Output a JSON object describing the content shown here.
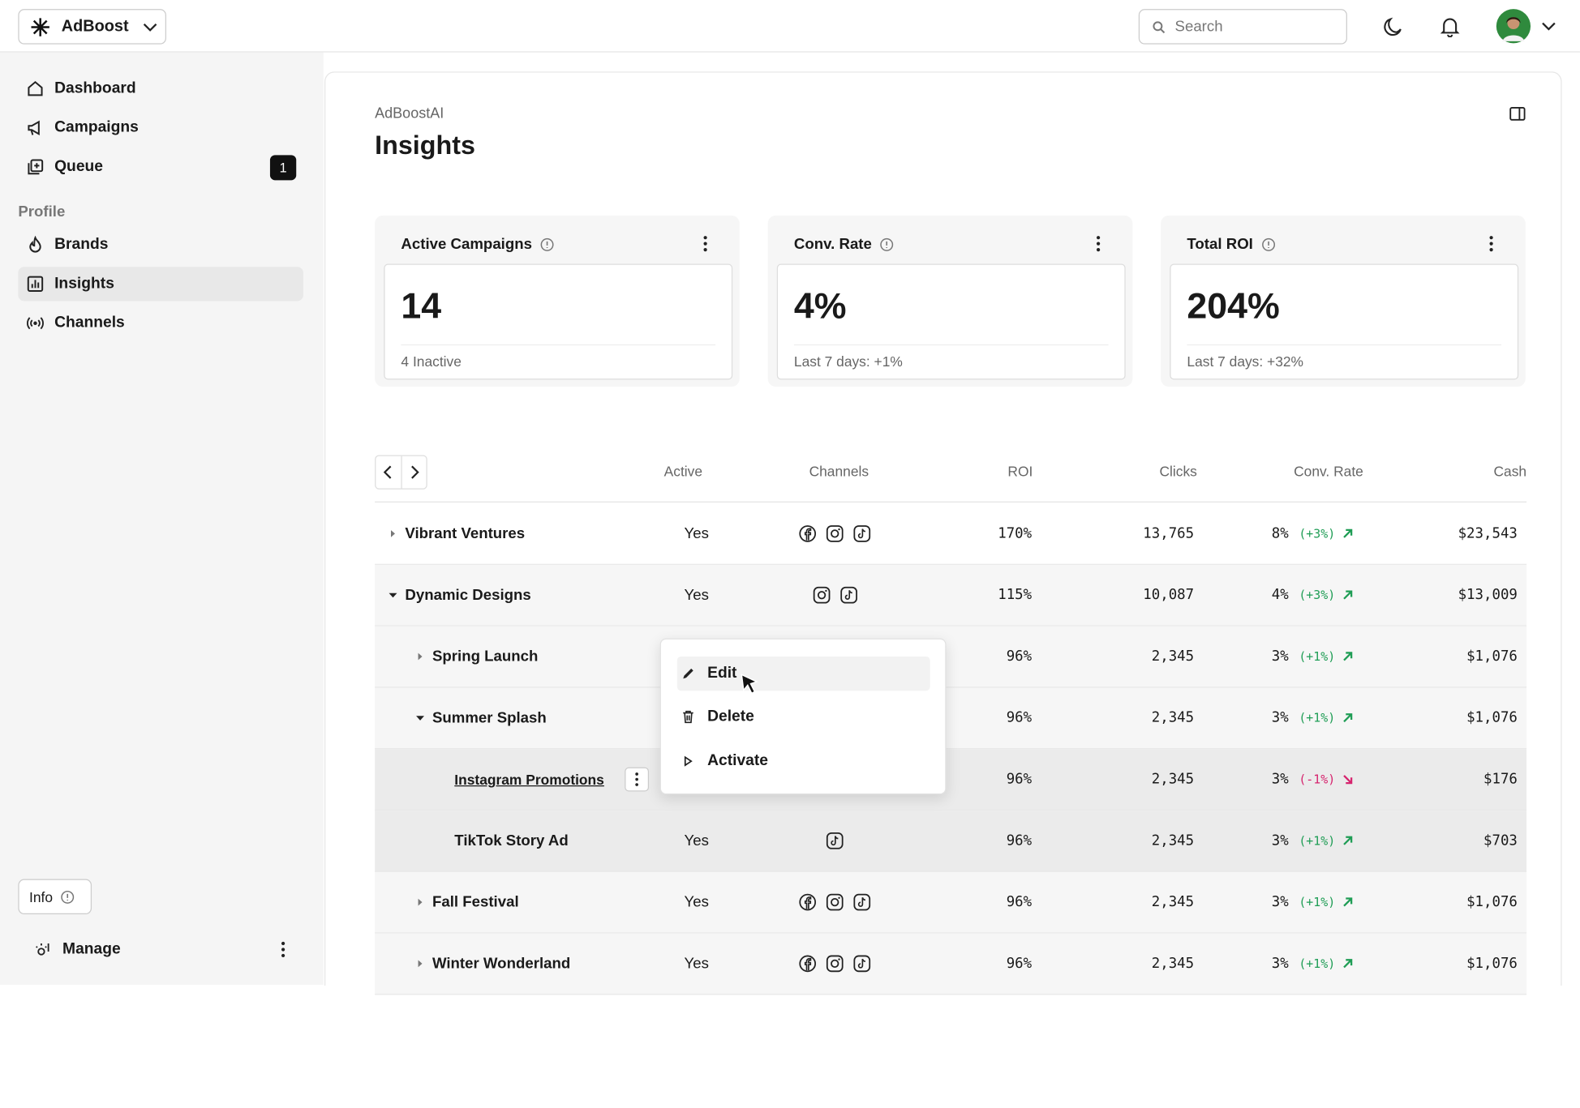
{
  "header": {
    "brand": "AdBoost",
    "search_placeholder": "Search"
  },
  "sidebar": {
    "nav": [
      {
        "label": "Dashboard"
      },
      {
        "label": "Campaigns"
      },
      {
        "label": "Queue",
        "badge": "1"
      }
    ],
    "section": "Profile",
    "profile_nav": [
      "Brands",
      "Insights",
      "Channels"
    ],
    "info": "Info",
    "manage": "Manage"
  },
  "page": {
    "breadcrumb": "AdBoostAI",
    "title": "Insights"
  },
  "cards": [
    {
      "title": "Active Campaigns",
      "value": "14",
      "footer": "4 Inactive"
    },
    {
      "title": "Conv. Rate",
      "value": "4%",
      "footer": "Last 7 days: +1%"
    },
    {
      "title": "Total ROI",
      "value": "204%",
      "footer": "Last 7 days: +32%"
    }
  ],
  "table": {
    "columns": [
      "Active",
      "Channels",
      "ROI",
      "Clicks",
      "Conv. Rate",
      "Cash"
    ],
    "rows": [
      {
        "name": "Vibrant Ventures",
        "active": "Yes",
        "roi": "170%",
        "clicks": "13,765",
        "conv": "8%",
        "change": "(+3%)",
        "cash": "$23,543"
      },
      {
        "name": "Dynamic Designs",
        "active": "Yes",
        "roi": "115%",
        "clicks": "10,087",
        "conv": "4%",
        "change": "(+3%)",
        "cash": "$13,009"
      },
      {
        "name": "Spring Launch",
        "roi": "96%",
        "clicks": "2,345",
        "conv": "3%",
        "change": "(+1%)",
        "cash": "$1,076"
      },
      {
        "name": "Summer Splash",
        "roi": "96%",
        "clicks": "2,345",
        "conv": "3%",
        "change": "(+1%)",
        "cash": "$1,076"
      },
      {
        "name": "Instagram Promotions",
        "roi": "96%",
        "clicks": "2,345",
        "conv": "3%",
        "change": "(-1%)",
        "cash": "$176"
      },
      {
        "name": "TikTok Story Ad",
        "active": "Yes",
        "roi": "96%",
        "clicks": "2,345",
        "conv": "3%",
        "change": "(+1%)",
        "cash": "$703"
      },
      {
        "name": "Fall Festival",
        "active": "Yes",
        "roi": "96%",
        "clicks": "2,345",
        "conv": "3%",
        "change": "(+1%)",
        "cash": "$1,076"
      },
      {
        "name": "Winter Wonderland",
        "active": "Yes",
        "roi": "96%",
        "clicks": "2,345",
        "conv": "3%",
        "change": "(+1%)",
        "cash": "$1,076"
      }
    ]
  },
  "context_menu": [
    "Edit",
    "Delete",
    "Activate"
  ]
}
